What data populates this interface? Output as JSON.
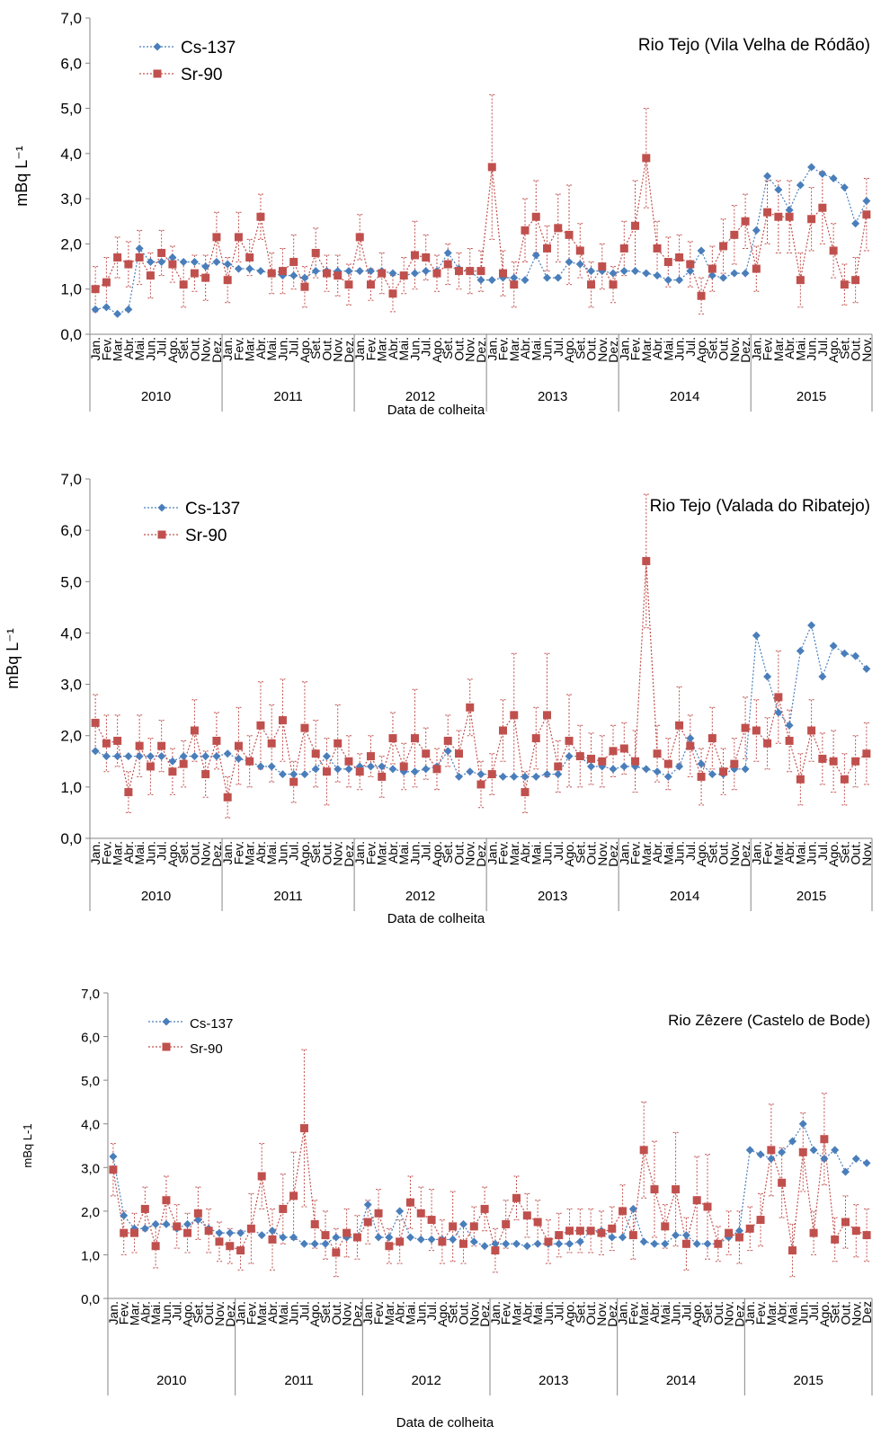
{
  "chart_data": [
    {
      "type": "line",
      "title": "Rio Tejo (Vila Velha de Ródão)",
      "y_label": "mBq L⁻¹",
      "x_label": "Data de colheita",
      "legend": "upper left",
      "grid": false,
      "ylim": [
        0,
        7
      ],
      "yticks": [
        {
          "value": 0,
          "label": "0,0"
        },
        {
          "value": 1,
          "label": "1,0"
        },
        {
          "value": 2,
          "label": "2,0"
        },
        {
          "value": 3,
          "label": "3,0"
        },
        {
          "value": 4,
          "label": "4,0"
        },
        {
          "value": 5,
          "label": "5,0"
        },
        {
          "value": 6,
          "label": "6,0"
        },
        {
          "value": 7,
          "label": "7,0"
        }
      ],
      "year_labels": [
        "2010",
        "2011",
        "2012",
        "2013",
        "2014",
        "2015"
      ],
      "categories": [
        "Jan.",
        "Fev.",
        "Mar.",
        "Abr.",
        "Mai.",
        "Jun.",
        "Jul.",
        "Ago.",
        "Set.",
        "Out.",
        "Nov.",
        "Dez.",
        "Jan.",
        "Fev.",
        "Mar.",
        "Abr.",
        "Mai.",
        "Jun.",
        "Jul.",
        "Ago.",
        "Set.",
        "Out.",
        "Nov.",
        "Dez.",
        "Jan.",
        "Fev.",
        "Mar.",
        "Abr.",
        "Mai.",
        "Jun.",
        "Jul.",
        "Ago.",
        "Set.",
        "Out.",
        "Nov.",
        "Dez.",
        "Jan.",
        "Fev.",
        "Mar.",
        "Abr.",
        "Mai.",
        "Jun.",
        "Jul.",
        "Ago.",
        "Set.",
        "Out.",
        "Nov.",
        "Dez.",
        "Jan.",
        "Fev.",
        "Mar.",
        "Abr.",
        "Mai.",
        "Jun.",
        "Jul.",
        "Ago.",
        "Set.",
        "Out.",
        "Nov.",
        "Dez.",
        "Jan.",
        "Fev.",
        "Mar.",
        "Abr.",
        "Mai.",
        "Jun.",
        "Jul.",
        "Ago.",
        "Set.",
        "Out.",
        "Nov."
      ],
      "series": [
        {
          "name": "Cs-137",
          "color": "#4a7ebb",
          "marker": "diamond",
          "values": [
            0.55,
            0.6,
            0.45,
            0.55,
            1.9,
            1.6,
            1.6,
            1.7,
            1.6,
            1.6,
            1.5,
            1.6,
            1.55,
            1.45,
            1.45,
            1.4,
            1.35,
            1.3,
            1.3,
            1.25,
            1.4,
            1.4,
            1.4,
            1.4,
            1.4,
            1.4,
            1.4,
            1.35,
            1.3,
            1.35,
            1.4,
            1.4,
            1.8,
            1.45,
            1.4,
            1.2,
            1.2,
            1.25,
            1.25,
            1.2,
            1.75,
            1.25,
            1.25,
            1.6,
            1.55,
            1.4,
            1.4,
            1.35,
            1.4,
            1.4,
            1.35,
            1.3,
            1.2,
            1.2,
            1.4,
            1.85,
            1.3,
            1.25,
            1.35,
            1.35,
            2.3,
            3.5,
            3.2,
            2.75,
            3.3,
            3.7,
            3.55,
            3.45,
            3.25,
            2.45,
            2.95
          ]
        },
        {
          "name": "Sr-90",
          "color": "#c0504d",
          "marker": "square",
          "values": [
            1.0,
            1.15,
            1.7,
            1.55,
            1.7,
            1.3,
            1.8,
            1.55,
            1.1,
            1.35,
            1.25,
            2.15,
            1.2,
            2.15,
            1.7,
            2.6,
            1.35,
            1.4,
            1.6,
            1.05,
            1.8,
            1.35,
            1.3,
            1.1,
            2.15,
            1.1,
            1.35,
            0.9,
            1.3,
            1.75,
            1.7,
            1.35,
            1.55,
            1.4,
            1.4,
            1.4,
            3.7,
            1.35,
            1.1,
            2.3,
            2.6,
            1.9,
            2.35,
            2.2,
            1.85,
            1.1,
            1.5,
            1.1,
            1.9,
            2.4,
            3.9,
            1.9,
            1.6,
            1.7,
            1.55,
            0.85,
            1.45,
            1.95,
            2.2,
            2.5,
            1.45,
            2.7,
            2.6,
            2.6,
            1.2,
            2.55,
            2.8,
            1.85,
            1.1,
            1.2,
            2.65
          ],
          "errors": [
            0.5,
            0.55,
            0.45,
            0.5,
            0.6,
            0.5,
            0.5,
            0.4,
            0.5,
            0.4,
            0.5,
            0.55,
            0.5,
            0.55,
            0.4,
            0.5,
            0.45,
            0.5,
            0.6,
            0.45,
            0.55,
            0.4,
            0.45,
            0.45,
            0.5,
            0.35,
            0.45,
            0.4,
            0.4,
            0.75,
            0.5,
            0.4,
            0.45,
            0.4,
            0.5,
            0.45,
            1.6,
            0.5,
            0.5,
            0.7,
            0.8,
            0.5,
            0.75,
            1.1,
            0.6,
            0.5,
            0.5,
            0.4,
            0.6,
            1.0,
            1.1,
            0.6,
            0.55,
            0.5,
            0.5,
            0.4,
            0.5,
            0.6,
            0.65,
            0.6,
            0.5,
            0.7,
            0.8,
            0.8,
            0.6,
            0.7,
            0.8,
            0.6,
            0.45,
            0.5,
            0.8
          ]
        }
      ]
    },
    {
      "type": "line",
      "title": "Rio Tejo (Valada do Ribatejo)",
      "y_label": "mBq L⁻¹",
      "x_label": "Data de colheita",
      "legend": "upper left",
      "grid": false,
      "ylim": [
        0,
        7
      ],
      "yticks": [
        {
          "value": 0,
          "label": "0,0"
        },
        {
          "value": 1,
          "label": "1,0"
        },
        {
          "value": 2,
          "label": "2,0"
        },
        {
          "value": 3,
          "label": "3,0"
        },
        {
          "value": 4,
          "label": "4,0"
        },
        {
          "value": 5,
          "label": "5,0"
        },
        {
          "value": 6,
          "label": "6,0"
        },
        {
          "value": 7,
          "label": "7,0"
        }
      ],
      "year_labels": [
        "2010",
        "2011",
        "2012",
        "2013",
        "2014",
        "2015"
      ],
      "categories": [
        "Jan.",
        "Fev.",
        "Mar.",
        "Abr.",
        "Mai.",
        "Jun.",
        "Jul.",
        "Ago.",
        "Set.",
        "Out.",
        "Nov.",
        "Dez.",
        "Jan.",
        "Fev.",
        "Mar.",
        "Abr.",
        "Mai.",
        "Jun.",
        "Jul.",
        "Ago.",
        "Set.",
        "Out.",
        "Nov.",
        "Dez.",
        "Jan.",
        "Fev.",
        "Mar.",
        "Abr.",
        "Mai.",
        "Jun.",
        "Jul.",
        "Ago.",
        "Set.",
        "Out.",
        "Nov.",
        "Dez.",
        "Jan.",
        "Fev.",
        "Mar.",
        "Abr.",
        "Mai.",
        "Jun.",
        "Jul.",
        "Ago.",
        "Set.",
        "Out.",
        "Nov.",
        "Dez.",
        "Jan.",
        "Fev.",
        "Mar.",
        "Abr.",
        "Mai.",
        "Jun.",
        "Jul.",
        "Ago.",
        "Set.",
        "Out.",
        "Nov.",
        "Dez.",
        "Jan.",
        "Fev.",
        "Mar.",
        "Abr.",
        "Mai.",
        "Jun.",
        "Jul.",
        "Ago.",
        "Set.",
        "Out.",
        "Nov."
      ],
      "series": [
        {
          "name": "Cs-137",
          "color": "#4a7ebb",
          "marker": "diamond",
          "values": [
            1.7,
            1.6,
            1.6,
            1.6,
            1.6,
            1.6,
            1.6,
            1.5,
            1.6,
            1.6,
            1.6,
            1.6,
            1.65,
            1.55,
            1.5,
            1.4,
            1.4,
            1.25,
            1.25,
            1.25,
            1.35,
            1.6,
            1.35,
            1.35,
            1.4,
            1.4,
            1.4,
            1.35,
            1.3,
            1.3,
            1.35,
            1.4,
            1.7,
            1.2,
            1.3,
            1.25,
            1.25,
            1.2,
            1.2,
            1.2,
            1.2,
            1.25,
            1.25,
            1.6,
            1.6,
            1.4,
            1.4,
            1.35,
            1.4,
            1.4,
            1.35,
            1.3,
            1.2,
            1.4,
            1.95,
            1.45,
            1.25,
            1.25,
            1.35,
            1.35,
            3.95,
            3.15,
            2.45,
            2.2,
            3.65,
            4.15,
            3.15,
            3.75,
            3.6,
            3.55,
            3.3
          ]
        },
        {
          "name": "Sr-90",
          "color": "#c0504d",
          "marker": "square",
          "values": [
            2.25,
            1.85,
            1.9,
            0.9,
            1.8,
            1.4,
            1.8,
            1.3,
            1.45,
            2.1,
            1.25,
            1.9,
            0.8,
            1.8,
            1.5,
            2.2,
            1.85,
            2.3,
            1.1,
            2.15,
            1.65,
            1.3,
            1.85,
            1.5,
            1.3,
            1.6,
            1.2,
            1.95,
            1.4,
            1.95,
            1.65,
            1.35,
            1.9,
            1.65,
            2.55,
            1.05,
            1.25,
            2.1,
            2.4,
            0.9,
            1.95,
            2.4,
            1.4,
            1.9,
            1.6,
            1.55,
            1.5,
            1.7,
            1.75,
            1.5,
            5.4,
            1.65,
            1.45,
            2.2,
            1.8,
            1.2,
            1.95,
            1.3,
            1.45,
            2.15,
            2.1,
            1.85,
            2.75,
            1.9,
            1.15,
            2.1,
            1.55,
            1.5,
            1.15,
            1.5,
            1.65
          ],
          "errors": [
            0.55,
            0.55,
            0.5,
            0.4,
            0.6,
            0.55,
            0.5,
            0.45,
            0.45,
            0.6,
            0.45,
            0.55,
            0.4,
            0.75,
            0.5,
            0.85,
            0.75,
            0.8,
            0.4,
            0.9,
            0.65,
            0.65,
            0.75,
            0.5,
            0.35,
            0.4,
            0.4,
            0.5,
            0.45,
            0.95,
            0.5,
            0.4,
            0.5,
            0.45,
            0.55,
            0.45,
            0.4,
            0.6,
            1.2,
            0.4,
            0.6,
            1.2,
            0.5,
            0.9,
            0.6,
            0.5,
            0.5,
            0.5,
            0.5,
            0.6,
            1.3,
            0.55,
            0.5,
            0.75,
            0.6,
            0.55,
            0.6,
            0.45,
            0.5,
            0.6,
            0.6,
            0.5,
            0.9,
            0.6,
            0.5,
            0.6,
            0.5,
            0.6,
            0.5,
            0.5,
            0.6
          ]
        }
      ]
    },
    {
      "type": "line",
      "title": "Rio Zêzere (Castelo de Bode)",
      "y_label": "mBq L-1",
      "x_label": "Data de colheita",
      "legend": "upper left",
      "grid": false,
      "ylim": [
        0,
        7
      ],
      "yticks": [
        {
          "value": 0,
          "label": "0,0"
        },
        {
          "value": 1,
          "label": "1,0"
        },
        {
          "value": 2,
          "label": "2,0"
        },
        {
          "value": 3,
          "label": "3,0"
        },
        {
          "value": 4,
          "label": "4,0"
        },
        {
          "value": 5,
          "label": "5,0"
        },
        {
          "value": 6,
          "label": "6,0"
        },
        {
          "value": 7,
          "label": "7,0"
        }
      ],
      "year_labels": [
        "2010",
        "2011",
        "2012",
        "2013",
        "2014",
        "2015"
      ],
      "categories": [
        "Jan.",
        "Fev.",
        "Mar.",
        "Abr.",
        "Mai.",
        "Jun.",
        "Jul.",
        "Ago.",
        "Set.",
        "Out.",
        "Nov.",
        "Dez.",
        "Jan.",
        "Fev.",
        "Mar.",
        "Abr.",
        "Mai.",
        "Jun.",
        "Jul.",
        "Ago.",
        "Set.",
        "Out.",
        "Nov.",
        "Dez.",
        "Jan.",
        "Fev.",
        "Mar.",
        "Abr.",
        "Mai.",
        "Jun.",
        "Jul.",
        "Ago.",
        "Set.",
        "Out.",
        "Nov.",
        "Dez.",
        "Jan.",
        "Fev.",
        "Mar.",
        "Abr.",
        "Mai.",
        "Jun.",
        "Jul.",
        "Ago.",
        "Set.",
        "Out.",
        "Nov.",
        "Dez.",
        "Jan.",
        "Fev.",
        "Mar.",
        "Abr.",
        "Mai.",
        "Jun.",
        "Jul.",
        "Ago.",
        "Set.",
        "Out.",
        "Nov.",
        "Dez.",
        "Jan.",
        "Fev.",
        "Mar.",
        "Abr.",
        "Mai.",
        "Jun.",
        "Jul.",
        "Ago.",
        "Set.",
        "Out.",
        "Nov.",
        "Dez"
      ],
      "series": [
        {
          "name": "Cs-137",
          "color": "#4a7ebb",
          "marker": "diamond",
          "values": [
            3.25,
            1.9,
            1.6,
            1.6,
            1.7,
            1.7,
            1.6,
            1.7,
            1.8,
            1.6,
            1.5,
            1.5,
            1.5,
            1.6,
            1.45,
            1.55,
            1.4,
            1.4,
            1.25,
            1.25,
            1.25,
            1.4,
            1.4,
            1.4,
            2.15,
            1.4,
            1.4,
            2.0,
            1.4,
            1.35,
            1.35,
            1.35,
            1.35,
            1.7,
            1.3,
            1.2,
            1.25,
            1.25,
            1.25,
            1.2,
            1.25,
            1.25,
            1.25,
            1.25,
            1.3,
            1.55,
            1.55,
            1.4,
            1.4,
            2.05,
            1.3,
            1.25,
            1.25,
            1.45,
            1.45,
            1.25,
            1.25,
            1.25,
            1.4,
            1.55,
            3.4,
            3.3,
            3.2,
            3.35,
            3.6,
            4.0,
            3.4,
            3.2,
            3.4,
            2.9,
            3.2,
            3.1
          ]
        },
        {
          "name": "Sr-90",
          "color": "#c0504d",
          "marker": "square",
          "values": [
            2.95,
            1.5,
            1.5,
            2.05,
            1.2,
            2.25,
            1.65,
            1.5,
            1.95,
            1.55,
            1.3,
            1.2,
            1.1,
            1.6,
            2.8,
            1.35,
            2.05,
            2.35,
            3.9,
            1.7,
            1.45,
            1.05,
            1.5,
            1.4,
            1.75,
            1.95,
            1.2,
            1.3,
            2.2,
            1.95,
            1.8,
            1.3,
            1.65,
            1.25,
            1.65,
            2.05,
            1.1,
            1.7,
            2.3,
            1.9,
            1.75,
            1.3,
            1.45,
            1.55,
            1.55,
            1.55,
            1.5,
            1.6,
            2.0,
            1.45,
            3.4,
            2.5,
            1.65,
            2.5,
            1.25,
            2.25,
            2.1,
            1.25,
            1.5,
            1.4,
            1.6,
            1.8,
            3.4,
            2.65,
            1.1,
            3.35,
            1.5,
            3.65,
            1.35,
            1.75,
            1.55,
            1.45
          ],
          "errors": [
            0.6,
            0.5,
            0.45,
            0.5,
            0.5,
            0.55,
            0.5,
            0.45,
            0.6,
            0.5,
            0.45,
            0.4,
            0.45,
            0.8,
            0.75,
            0.7,
            0.8,
            1.0,
            1.8,
            0.55,
            0.55,
            0.55,
            0.55,
            0.5,
            0.5,
            0.55,
            0.4,
            0.5,
            0.6,
            0.6,
            0.7,
            0.5,
            0.8,
            0.45,
            0.45,
            0.5,
            0.5,
            0.55,
            0.5,
            0.5,
            0.5,
            0.5,
            0.5,
            0.5,
            0.5,
            0.5,
            0.5,
            0.5,
            0.6,
            0.55,
            1.1,
            1.1,
            0.5,
            1.3,
            0.6,
            1.0,
            1.2,
            0.4,
            0.5,
            0.6,
            0.5,
            0.6,
            1.05,
            0.8,
            0.6,
            0.9,
            0.5,
            1.05,
            0.5,
            0.6,
            0.6,
            0.6
          ]
        }
      ]
    }
  ]
}
